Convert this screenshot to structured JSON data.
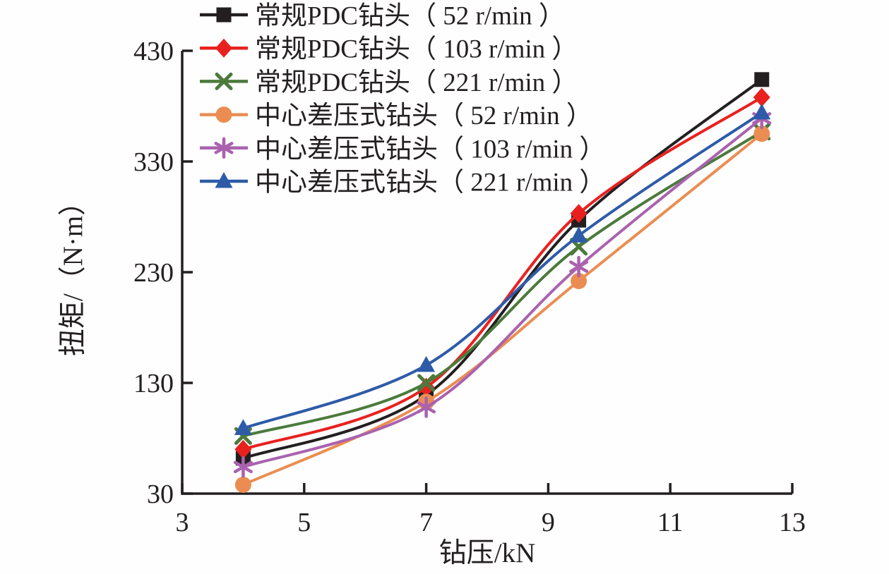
{
  "figure": {
    "background": "#fefefe",
    "axis_color": "#231f20"
  },
  "chart_data": {
    "type": "line",
    "title": "",
    "xlabel": "钻压/kN",
    "ylabel": "扭矩/（N·m）",
    "xlim": [
      3,
      13
    ],
    "ylim": [
      30,
      430
    ],
    "xticks": [
      3,
      5,
      7,
      9,
      11,
      13
    ],
    "yticks": [
      30,
      130,
      230,
      330,
      430
    ],
    "grid": false,
    "legend_position": "top-left",
    "x": [
      4,
      7,
      9.5,
      12.5
    ],
    "series": [
      {
        "name": "常规PDC钻头（ 52 r/min ）",
        "marker": "square",
        "color": "#231f20",
        "values": [
          62,
          119,
          277,
          404
        ]
      },
      {
        "name": "常规PDC钻头（ 103 r/min ）",
        "marker": "diamond",
        "color": "#e8211f",
        "values": [
          70,
          126,
          283,
          388
        ]
      },
      {
        "name": "常规PDC钻头（ 221 r/min ）",
        "marker": "x",
        "color": "#4b7a3c",
        "values": [
          82,
          130,
          253,
          357
        ]
      },
      {
        "name": "中心差压式钻头（ 52 r/min ）",
        "marker": "circle",
        "color": "#eb8d52",
        "values": [
          38,
          113,
          222,
          355
        ]
      },
      {
        "name": "中心差压式钻头（ 103 r/min ）",
        "marker": "asterisk",
        "color": "#aa62af",
        "values": [
          54,
          108,
          235,
          369
        ]
      },
      {
        "name": "中心差压式钻头（ 221 r/min ）",
        "marker": "triangle",
        "color": "#2e5ba8",
        "values": [
          89,
          146,
          263,
          374
        ]
      }
    ]
  }
}
